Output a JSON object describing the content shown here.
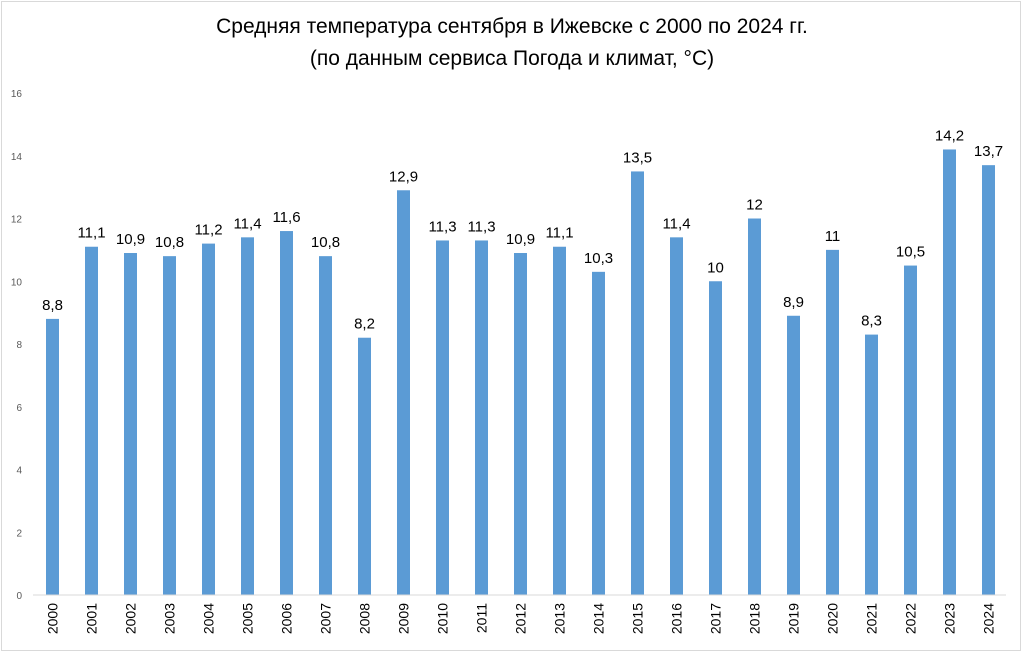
{
  "chart_data": {
    "type": "bar",
    "title": "Средняя температура сентября в Ижевске с 2000 по 2024 гг.",
    "subtitle": "(по данным сервиса Погода и климат, °C)",
    "xlabel": "",
    "ylabel": "",
    "ylim": [
      0,
      16
    ],
    "yticks": [
      0,
      2,
      4,
      6,
      8,
      10,
      12,
      14,
      16
    ],
    "grid": false,
    "bar_color": "#5b9bd5",
    "categories": [
      "2000",
      "2001",
      "2002",
      "2003",
      "2004",
      "2005",
      "2006",
      "2007",
      "2008",
      "2009",
      "2010",
      "2011",
      "2012",
      "2013",
      "2014",
      "2015",
      "2016",
      "2017",
      "2018",
      "2019",
      "2020",
      "2021",
      "2022",
      "2023",
      "2024"
    ],
    "values": [
      8.8,
      11.1,
      10.9,
      10.8,
      11.2,
      11.4,
      11.6,
      10.8,
      8.2,
      12.9,
      11.3,
      11.3,
      10.9,
      11.1,
      10.3,
      13.5,
      11.4,
      10,
      12,
      8.9,
      11,
      8.3,
      10.5,
      14.2,
      13.7
    ],
    "data_labels": [
      "8,8",
      "11,1",
      "10,9",
      "10,8",
      "11,2",
      "11,4",
      "11,6",
      "10,8",
      "8,2",
      "12,9",
      "11,3",
      "11,3",
      "10,9",
      "11,1",
      "10,3",
      "13,5",
      "11,4",
      "10",
      "12",
      "8,9",
      "11",
      "8,3",
      "10,5",
      "14,2",
      "13,7"
    ]
  }
}
